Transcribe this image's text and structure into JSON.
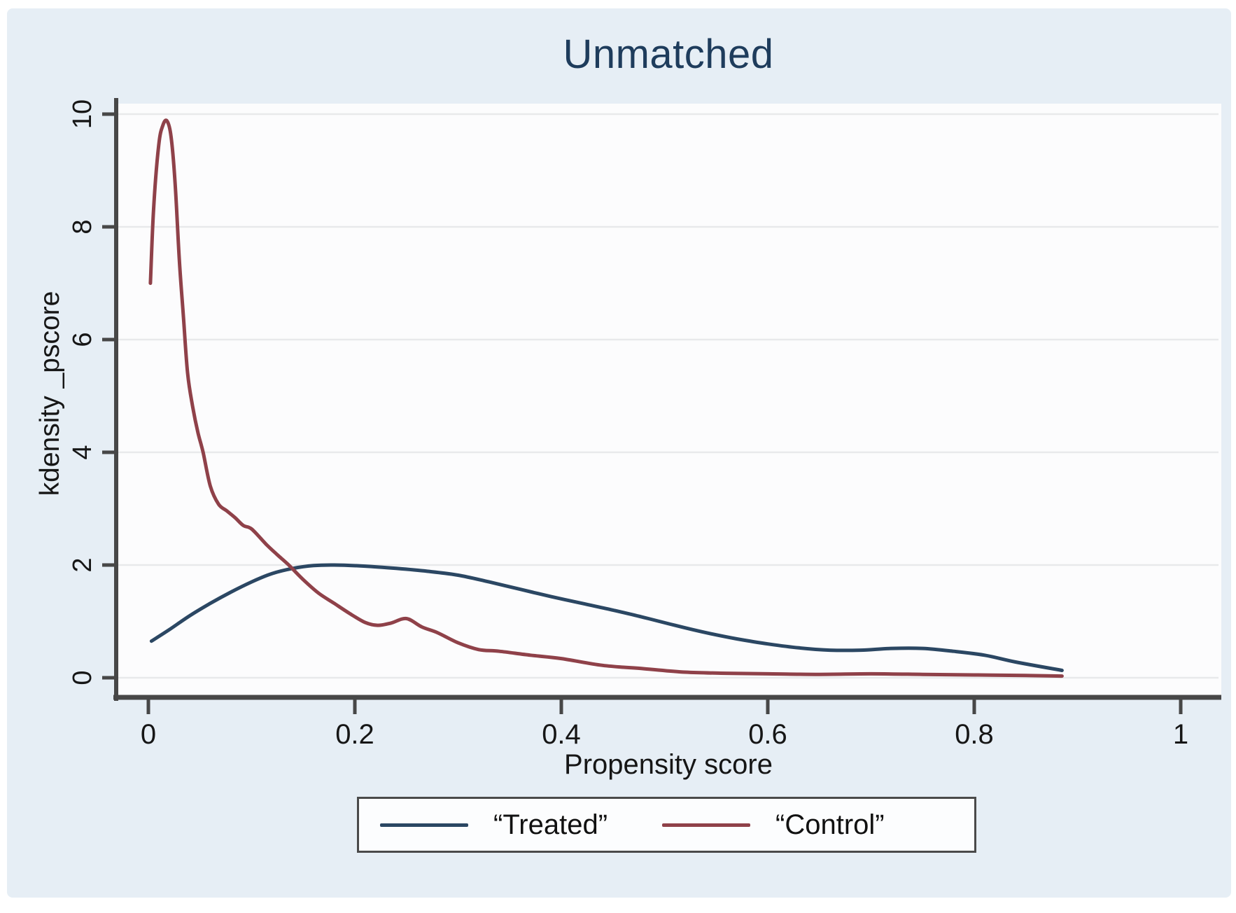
{
  "colors": {
    "canvas_background": "#e6eef5",
    "outer_border": "#ffffff",
    "plot_background": "#fcfcfd",
    "gridline": "#e8e9eb",
    "axis": "#474747",
    "tick_label": "#161616",
    "title": "#1e3c5c",
    "treated_line": "#2b4763",
    "control_line": "#8f4149",
    "legend_border": "#4a4a4a",
    "legend_background": "#fcfdfe"
  },
  "chart_data": {
    "type": "line",
    "title": "Unmatched",
    "xlabel": "Propensity score",
    "ylabel": "kdensity _pscore",
    "xlim": [
      0,
      1
    ],
    "ylim": [
      0,
      10
    ],
    "grid": true,
    "legend_position": "bottom-center",
    "xtick_values": [
      0,
      0.2,
      0.4,
      0.6,
      0.8,
      1
    ],
    "xtick_labels": [
      "0",
      "0.2",
      "0.4",
      "0.6",
      "0.8",
      "1"
    ],
    "ytick_values": [
      0,
      2,
      4,
      6,
      8,
      10
    ],
    "ytick_labels": [
      "0",
      "2",
      "4",
      "6",
      "8",
      "10"
    ],
    "series": [
      {
        "name": "“Treated”",
        "color": "#2b4763",
        "x": [
          0.003,
          0.02,
          0.04,
          0.06,
          0.08,
          0.1,
          0.12,
          0.14,
          0.16,
          0.18,
          0.21,
          0.24,
          0.27,
          0.3,
          0.33,
          0.36,
          0.39,
          0.42,
          0.45,
          0.48,
          0.51,
          0.54,
          0.57,
          0.6,
          0.63,
          0.66,
          0.69,
          0.72,
          0.75,
          0.78,
          0.81,
          0.84,
          0.885
        ],
        "y": [
          0.65,
          0.85,
          1.1,
          1.32,
          1.52,
          1.7,
          1.85,
          1.94,
          1.99,
          2.0,
          1.98,
          1.94,
          1.89,
          1.82,
          1.7,
          1.57,
          1.44,
          1.32,
          1.2,
          1.07,
          0.93,
          0.8,
          0.69,
          0.6,
          0.53,
          0.49,
          0.49,
          0.52,
          0.52,
          0.47,
          0.4,
          0.28,
          0.13
        ]
      },
      {
        "name": "“Control”",
        "color": "#8f4149",
        "x": [
          0.002,
          0.005,
          0.01,
          0.014,
          0.018,
          0.022,
          0.026,
          0.03,
          0.034,
          0.038,
          0.043,
          0.048,
          0.053,
          0.06,
          0.068,
          0.076,
          0.084,
          0.092,
          0.1,
          0.114,
          0.125,
          0.136,
          0.15,
          0.165,
          0.18,
          0.195,
          0.21,
          0.222,
          0.235,
          0.25,
          0.265,
          0.28,
          0.3,
          0.32,
          0.34,
          0.37,
          0.4,
          0.44,
          0.48,
          0.52,
          0.56,
          0.6,
          0.65,
          0.7,
          0.75,
          0.8,
          0.85,
          0.885
        ],
        "y": [
          7.0,
          8.3,
          9.45,
          9.8,
          9.88,
          9.6,
          8.75,
          7.4,
          6.4,
          5.4,
          4.8,
          4.35,
          4.0,
          3.4,
          3.08,
          2.96,
          2.84,
          2.7,
          2.64,
          2.37,
          2.18,
          2.0,
          1.74,
          1.5,
          1.32,
          1.14,
          0.98,
          0.93,
          0.97,
          1.05,
          0.9,
          0.8,
          0.62,
          0.5,
          0.47,
          0.4,
          0.34,
          0.22,
          0.16,
          0.1,
          0.08,
          0.07,
          0.06,
          0.07,
          0.06,
          0.05,
          0.04,
          0.03
        ]
      }
    ]
  }
}
